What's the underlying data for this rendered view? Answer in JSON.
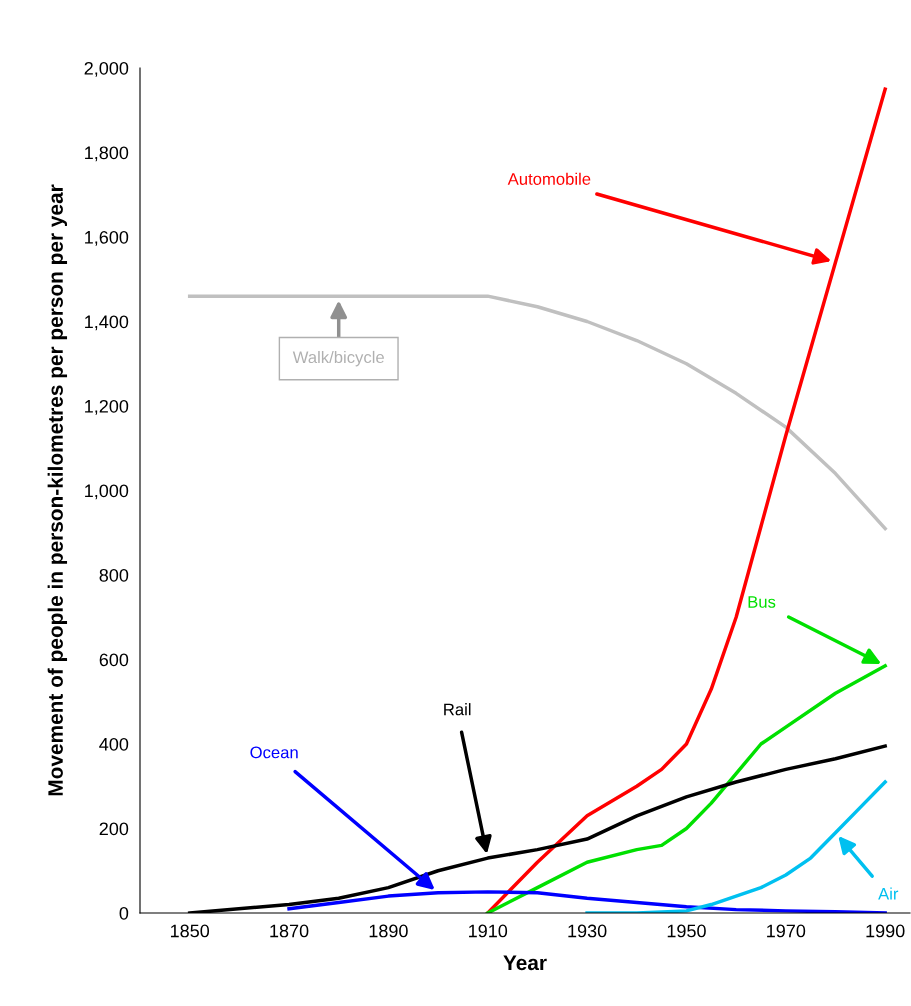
{
  "chart_data": {
    "type": "line",
    "xlabel": "Year",
    "ylabel": "Movement of people in person-kilometres per person per year",
    "xlim": [
      1840,
      1995
    ],
    "xticks": [
      1850,
      1870,
      1890,
      1910,
      1930,
      1950,
      1970,
      1990
    ],
    "ylim": [
      0,
      2000
    ],
    "yticks": [
      0,
      200,
      400,
      600,
      800,
      {
        "value": 1000,
        "label": "1,000"
      },
      {
        "value": 1200,
        "label": "1,200"
      },
      {
        "value": 1400,
        "label": "1,400"
      },
      {
        "value": 1600,
        "label": "1,600"
      },
      {
        "value": 1800,
        "label": "1,800"
      },
      {
        "value": 2000,
        "label": "2,000"
      }
    ],
    "grid": false,
    "legend": false,
    "marker": "none",
    "line_style": "solid",
    "series": [
      {
        "name": "Walk/bicycle",
        "color": "#c0c0c0",
        "x": [
          1850,
          1880,
          1910,
          1920,
          1930,
          1940,
          1950,
          1960,
          1970,
          1980,
          1990
        ],
        "values": [
          1460,
          1460,
          1460,
          1435,
          1400,
          1355,
          1300,
          1230,
          1150,
          1040,
          910
        ]
      },
      {
        "name": "Automobile",
        "color": "#ff0000",
        "x": [
          1910,
          1920,
          1930,
          1940,
          1945,
          1950,
          1955,
          1960,
          1970,
          1980,
          1990
        ],
        "values": [
          0,
          120,
          230,
          300,
          340,
          400,
          530,
          700,
          1130,
          1540,
          1950
        ]
      },
      {
        "name": "Bus",
        "color": "#00e000",
        "x": [
          1910,
          1920,
          1930,
          1940,
          1945,
          1950,
          1955,
          1960,
          1965,
          1970,
          1980,
          1990
        ],
        "values": [
          0,
          60,
          120,
          150,
          160,
          200,
          260,
          330,
          400,
          440,
          520,
          585
        ]
      },
      {
        "name": "Rail",
        "color": "#000000",
        "x": [
          1850,
          1870,
          1880,
          1890,
          1900,
          1910,
          1920,
          1930,
          1940,
          1950,
          1960,
          1970,
          1980,
          1990
        ],
        "values": [
          0,
          20,
          35,
          60,
          100,
          130,
          150,
          175,
          230,
          275,
          310,
          340,
          365,
          395
        ]
      },
      {
        "name": "Ocean",
        "color": "#0000ff",
        "x": [
          1870,
          1880,
          1890,
          1900,
          1910,
          1920,
          1930,
          1940,
          1950,
          1960,
          1970,
          1980,
          1990
        ],
        "values": [
          10,
          25,
          40,
          48,
          50,
          48,
          35,
          25,
          15,
          8,
          5,
          3,
          0
        ]
      },
      {
        "name": "Air",
        "color": "#00c0f0",
        "x": [
          1930,
          1940,
          1950,
          1955,
          1960,
          1965,
          1970,
          1975,
          1980,
          1985,
          1990
        ],
        "values": [
          0,
          0,
          5,
          20,
          40,
          60,
          90,
          130,
          190,
          250,
          310
        ]
      }
    ]
  }
}
